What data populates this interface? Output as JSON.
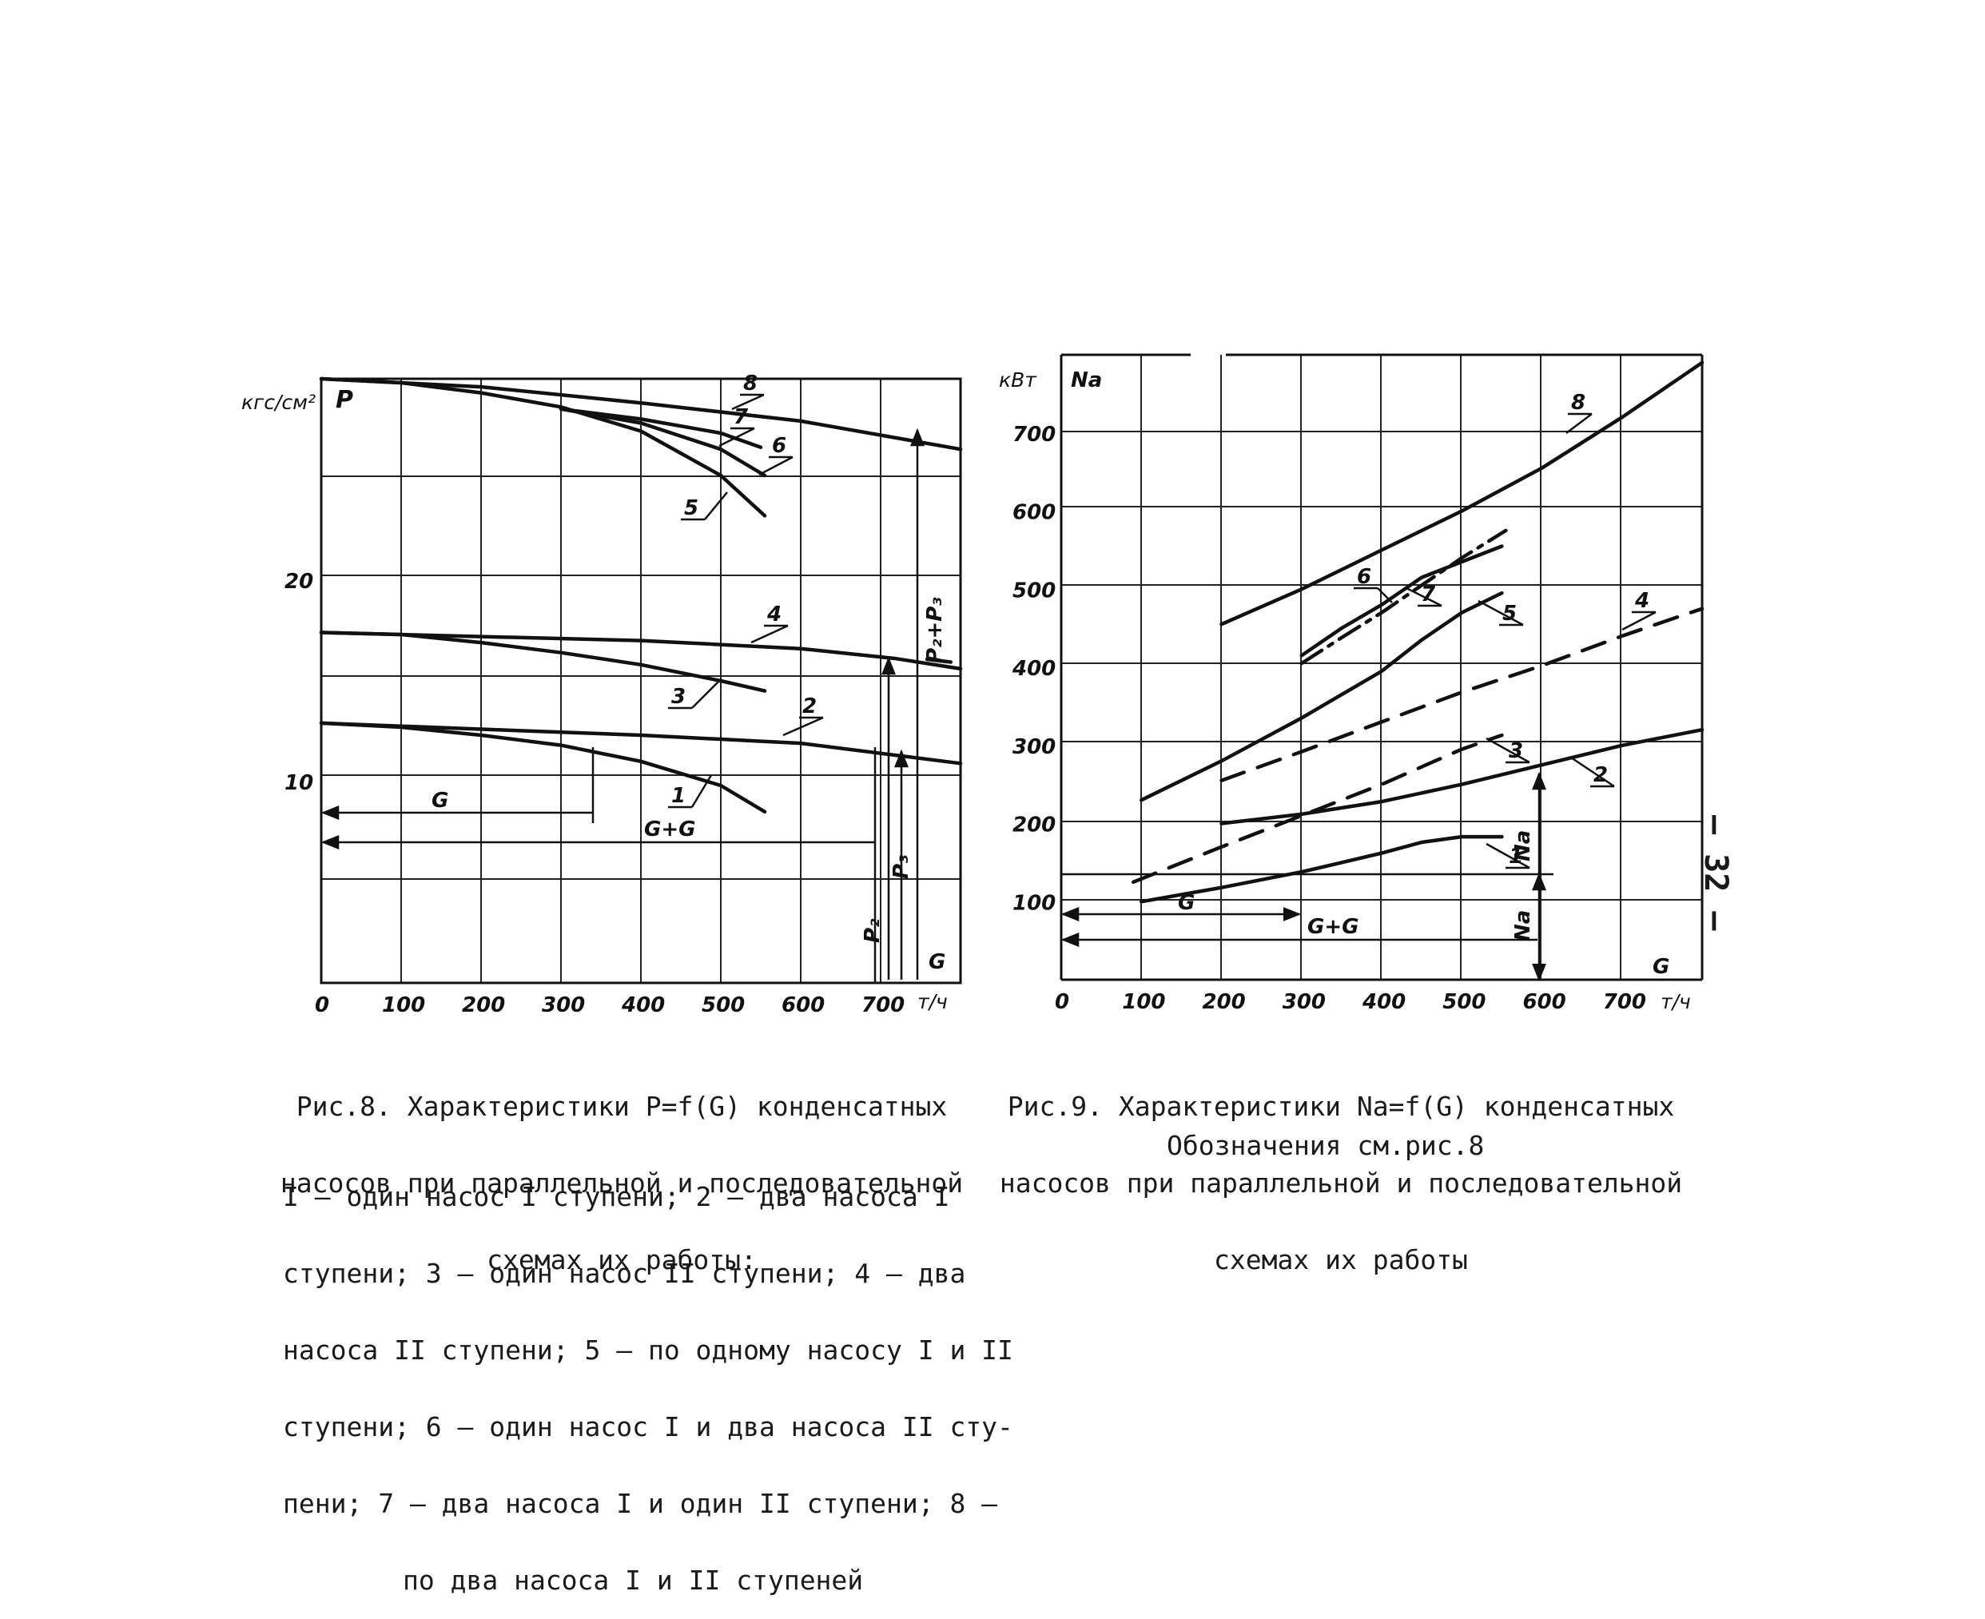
{
  "page_number": "– 32 –",
  "charts": {
    "fig8": {
      "caption_lines": [
        "Рис.8. Характеристики P=f(G) конденсатных",
        "насосов при параллельной и последовательной",
        "схемах их работы:"
      ],
      "legend_lines": [
        "I – один насос I ступени; 2 – два насоса I",
        "ступени; 3 – один насос II ступени; 4 – два",
        "насоса II ступени; 5 – по одному насосу I и II",
        "ступени; 6 – один насос I и два насоса II сту-",
        "пени; 7 – два насоса I и один II ступени; 8 –",
        "по два насоса I и II ступеней"
      ],
      "y_unit": "кгс/см²",
      "y_symbol": "P",
      "x_unit": "т/ч",
      "x_symbol": "G",
      "annotations": {
        "g": "G",
        "g_plus_g": "G+G",
        "p2p3": "P₂+P₃",
        "p2": "P₂",
        "p3": "P₃"
      }
    },
    "fig9": {
      "caption_lines": [
        "Рис.9. Характеристики Na=f(G) конденсатных",
        "насосов при параллельной и последовательной",
        "схемах их работы"
      ],
      "note": "Обозначения см.рис.8",
      "y_unit": "кВт",
      "y_symbol": "Na",
      "x_unit": "т/ч",
      "x_symbol": "G",
      "annotations": {
        "g": "G",
        "g_plus_g": "G+G",
        "na_upper": "Na",
        "na_lower": "Na"
      }
    }
  },
  "chart_data": [
    {
      "type": "line",
      "title": "Рис.8. Характеристики P=f(G) конденсатных насосов",
      "xlabel": "т/ч",
      "ylabel": "кгс/см²",
      "xlim": [
        0,
        800
      ],
      "ylim": [
        0,
        30
      ],
      "x_ticks": [
        "0",
        "100",
        "200",
        "300",
        "400",
        "500",
        "600",
        "700"
      ],
      "y_ticks": [
        "10",
        "20"
      ],
      "grid": true,
      "series": [
        {
          "name": "1",
          "style": "solid",
          "x": [
            0,
            100,
            200,
            300,
            400,
            500,
            555
          ],
          "y": [
            12.9,
            12.7,
            12.3,
            11.8,
            11.0,
            9.8,
            8.5
          ]
        },
        {
          "name": "2",
          "style": "solid",
          "x": [
            0,
            200,
            400,
            600,
            800
          ],
          "y": [
            12.9,
            12.6,
            12.3,
            11.9,
            10.9
          ]
        },
        {
          "name": "3",
          "style": "solid",
          "x": [
            0,
            100,
            200,
            300,
            400,
            500,
            555
          ],
          "y": [
            17.4,
            17.3,
            16.9,
            16.4,
            15.8,
            15.0,
            14.5
          ]
        },
        {
          "name": "4",
          "style": "solid",
          "x": [
            0,
            200,
            400,
            600,
            720,
            800
          ],
          "y": [
            17.4,
            17.2,
            17.0,
            16.6,
            16.1,
            15.6
          ]
        },
        {
          "name": "5",
          "style": "solid",
          "x": [
            0,
            100,
            200,
            300,
            400,
            500,
            555
          ],
          "y": [
            30.0,
            29.8,
            29.3,
            28.6,
            27.4,
            25.2,
            23.2
          ]
        },
        {
          "name": "6",
          "style": "solid",
          "x": [
            300,
            400,
            500,
            555
          ],
          "y": [
            28.5,
            27.8,
            26.5,
            25.2
          ]
        },
        {
          "name": "7",
          "style": "solid",
          "x": [
            300,
            400,
            500,
            550
          ],
          "y": [
            28.5,
            28.0,
            27.3,
            26.6
          ]
        },
        {
          "name": "8",
          "style": "solid",
          "x": [
            0,
            200,
            400,
            600,
            800
          ],
          "y": [
            30.0,
            29.6,
            28.8,
            27.9,
            26.5
          ]
        }
      ]
    },
    {
      "type": "line",
      "title": "Рис.9. Характеристики Na=f(G) конденсатных насосов",
      "xlabel": "т/ч",
      "ylabel": "кВт",
      "xlim": [
        0,
        800
      ],
      "ylim": [
        0,
        800
      ],
      "x_ticks": [
        "0",
        "100",
        "200",
        "300",
        "400",
        "500",
        "600",
        "700"
      ],
      "y_ticks": [
        "100",
        "200",
        "300",
        "400",
        "500",
        "600",
        "700"
      ],
      "grid": true,
      "series": [
        {
          "name": "1",
          "style": "solid",
          "x": [
            100,
            200,
            300,
            400,
            450,
            500,
            550
          ],
          "y": [
            100,
            118,
            138,
            162,
            176,
            183,
            183
          ]
        },
        {
          "name": "2",
          "style": "solid",
          "x": [
            200,
            300,
            400,
            500,
            600,
            700,
            800
          ],
          "y": [
            200,
            212,
            228,
            250,
            275,
            300,
            320
          ]
        },
        {
          "name": "3",
          "style": "dashed",
          "x": [
            90,
            200,
            300,
            400,
            500,
            550
          ],
          "y": [
            125,
            170,
            210,
            250,
            295,
            313
          ]
        },
        {
          "name": "4",
          "style": "dashed",
          "x": [
            200,
            300,
            400,
            500,
            600,
            700,
            800
          ],
          "y": [
            255,
            292,
            330,
            368,
            402,
            440,
            475
          ]
        },
        {
          "name": "5",
          "style": "solid",
          "x": [
            100,
            200,
            300,
            400,
            450,
            500,
            550
          ],
          "y": [
            230,
            280,
            335,
            395,
            435,
            470,
            495
          ]
        },
        {
          "name": "6",
          "style": "solid",
          "x": [
            300,
            350,
            400,
            450,
            500,
            550
          ],
          "y": [
            415,
            450,
            480,
            515,
            535,
            555
          ]
        },
        {
          "name": "7",
          "style": "dashdot",
          "x": [
            300,
            350,
            400,
            450,
            500,
            555
          ],
          "y": [
            405,
            438,
            470,
            505,
            540,
            575
          ]
        },
        {
          "name": "8",
          "style": "solid",
          "x": [
            200,
            300,
            400,
            500,
            600,
            700,
            800
          ],
          "y": [
            455,
            500,
            550,
            600,
            655,
            720,
            790
          ]
        }
      ]
    }
  ]
}
